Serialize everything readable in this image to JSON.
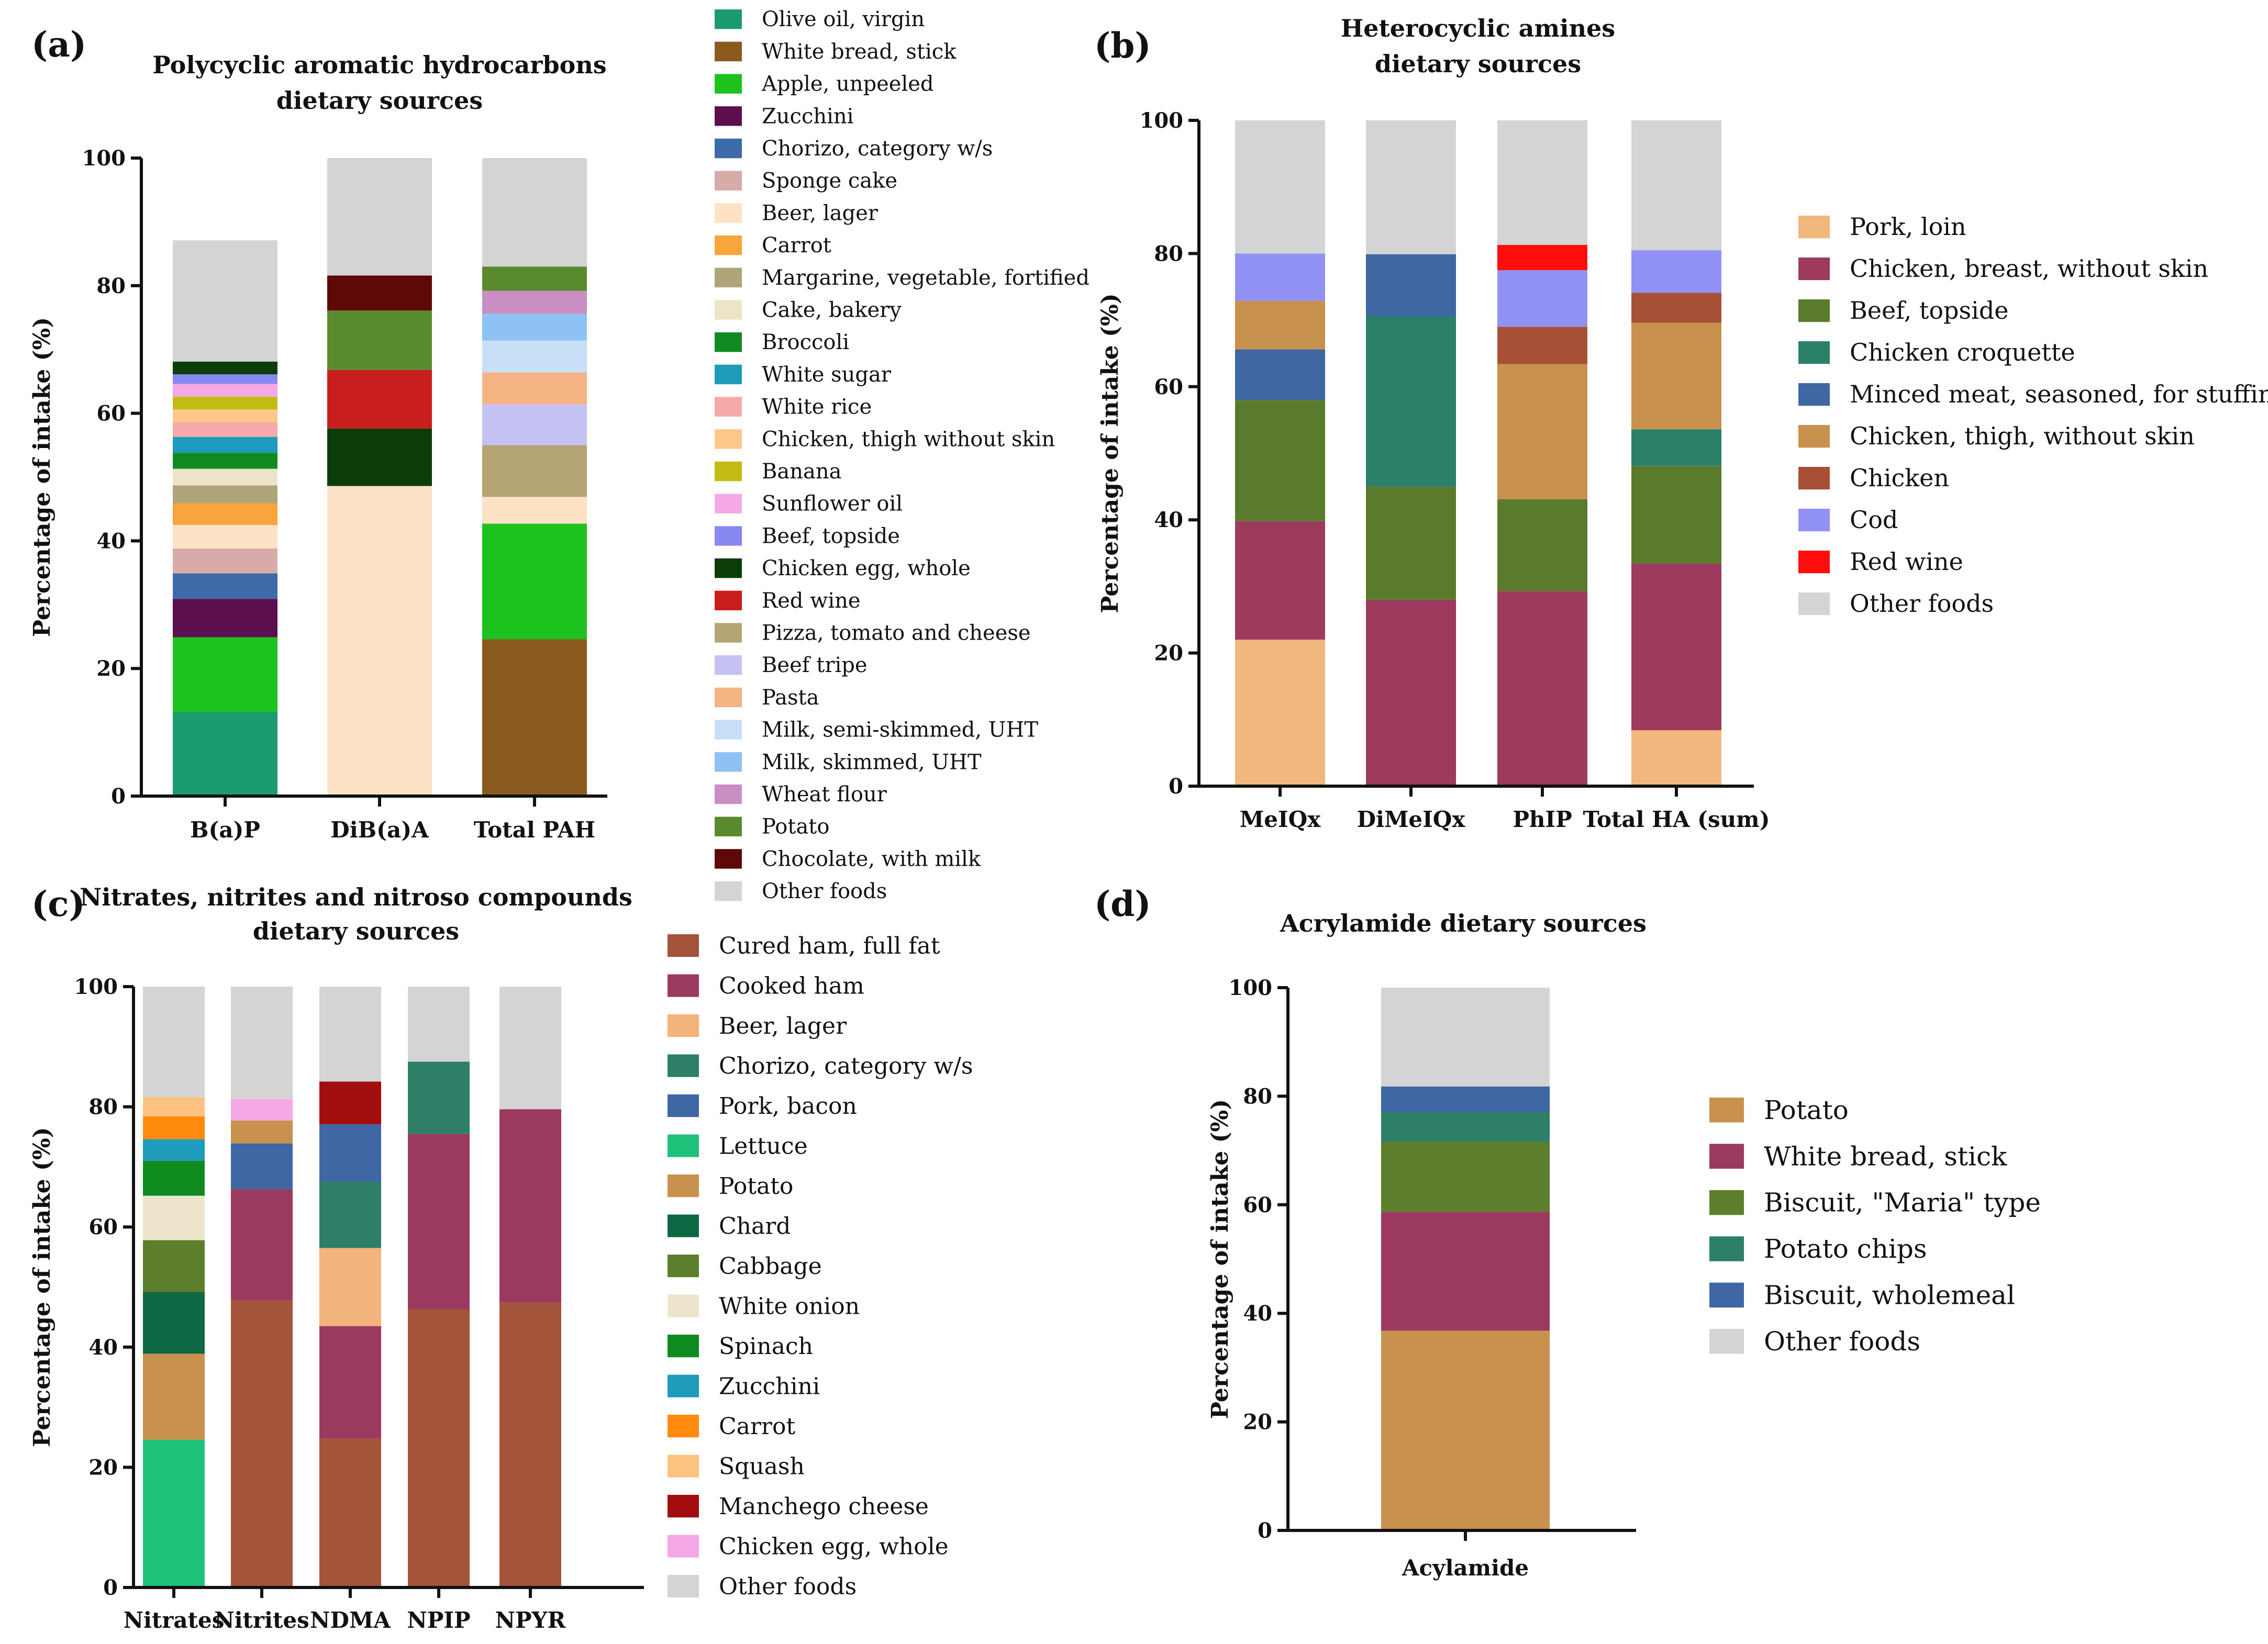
{
  "chart_data": [
    {
      "id": "a",
      "panel_label": "(a)",
      "type": "bar",
      "stacked": true,
      "title_lines": [
        "Polycyclic aromatic hydrocarbons",
        "dietary sources"
      ],
      "xlabel": "",
      "ylabel": "Percentage of intake (%)",
      "ylim": [
        0,
        100
      ],
      "yticks": [
        "0",
        "20",
        "40",
        "60",
        "80",
        "100"
      ],
      "categories": [
        "B(a)P",
        "DiB(a)A",
        "Total PAH"
      ],
      "legend_position": "right",
      "series": [
        {
          "name": "Olive oil, virgin",
          "color": "#1c9a70",
          "values": [
            13.2,
            0,
            0
          ]
        },
        {
          "name": "White bread, stick",
          "color": "#8b5a1e",
          "values": [
            0,
            0,
            24.6
          ]
        },
        {
          "name": "Apple, unpeeled",
          "color": "#1ec21e",
          "values": [
            11.7,
            0,
            18.1
          ]
        },
        {
          "name": "Zucchini",
          "color": "#5c0f4e",
          "values": [
            6.0,
            0,
            0
          ]
        },
        {
          "name": "Chorizo, category w/s",
          "color": "#3d6aa8",
          "values": [
            4.0,
            0,
            0
          ]
        },
        {
          "name": "Sponge cake",
          "color": "#d8aaa8",
          "values": [
            3.9,
            0,
            0
          ]
        },
        {
          "name": "Beer, lager",
          "color": "#fde2c6",
          "values": [
            3.7,
            48.6,
            4.2
          ]
        },
        {
          "name": "Carrot",
          "color": "#f7a53c",
          "values": [
            3.4,
            0,
            0
          ]
        },
        {
          "name": "Margarine, vegetable, fortified",
          "color": "#b0a479",
          "values": [
            2.8,
            0,
            0
          ]
        },
        {
          "name": "Cake, bakery",
          "color": "#ece4c6",
          "values": [
            2.6,
            0,
            0
          ]
        },
        {
          "name": "Broccoli",
          "color": "#118a22",
          "values": [
            2.5,
            0,
            0
          ]
        },
        {
          "name": "White sugar",
          "color": "#1e9bbb",
          "values": [
            2.5,
            0,
            0
          ]
        },
        {
          "name": "White rice",
          "color": "#f7a8a8",
          "values": [
            2.3,
            0,
            0
          ]
        },
        {
          "name": "Chicken, thigh without skin",
          "color": "#fbc88a",
          "values": [
            2.0,
            0,
            0
          ]
        },
        {
          "name": "Banana",
          "color": "#c2bc12",
          "values": [
            2.0,
            0,
            0
          ]
        },
        {
          "name": "Sunflower oil",
          "color": "#f5a8e6",
          "values": [
            2.0,
            0,
            0
          ]
        },
        {
          "name": "Beef, topside",
          "color": "#8888f0",
          "values": [
            1.5,
            0,
            0
          ]
        },
        {
          "name": "Chicken egg, whole",
          "color": "#0b3d0b",
          "values": [
            2.0,
            9.0,
            0
          ]
        },
        {
          "name": "Red wine",
          "color": "#c81e1e",
          "values": [
            0,
            9.2,
            0
          ]
        },
        {
          "name": "Pizza, tomato and cheese",
          "color": "#b5a474",
          "values": [
            0,
            0,
            8.1
          ]
        },
        {
          "name": "Beef tripe",
          "color": "#c5c3f3",
          "values": [
            0,
            0,
            6.4
          ]
        },
        {
          "name": "Pasta",
          "color": "#f5b283",
          "values": [
            0,
            0,
            5.0
          ]
        },
        {
          "name": "Milk, semi-skimmed, UHT",
          "color": "#c7e0f7",
          "values": [
            0,
            0,
            5.0
          ]
        },
        {
          "name": "Milk, skimmed, UHT",
          "color": "#8ec2f5",
          "values": [
            0,
            0,
            4.2
          ]
        },
        {
          "name": "Wheat flour",
          "color": "#c98ec4",
          "values": [
            0,
            0,
            3.6
          ]
        },
        {
          "name": "Potato",
          "color": "#5a8a2e",
          "values": [
            0,
            9.3,
            3.8
          ]
        },
        {
          "name": "Chocolate, with milk",
          "color": "#5e0808",
          "values": [
            0,
            5.5,
            0
          ]
        },
        {
          "name": "Other foods",
          "color": "#d4d4d4",
          "values": [
            19.0,
            18.4,
            17.0
          ]
        }
      ]
    },
    {
      "id": "b",
      "panel_label": "(b)",
      "type": "bar",
      "stacked": true,
      "title_lines": [
        "Heterocyclic amines",
        "dietary sources"
      ],
      "xlabel": "",
      "ylabel": "Percentage of intake (%)",
      "ylim": [
        0,
        100
      ],
      "yticks": [
        "0",
        "20",
        "40",
        "60",
        "80",
        "100"
      ],
      "categories": [
        "MeIQx",
        "DiMeIQx",
        "PhIP",
        "Total HA (sum)"
      ],
      "legend_position": "right",
      "series": [
        {
          "name": "Pork, loin",
          "color": "#f2b77c",
          "values": [
            22.0,
            0,
            0,
            8.4
          ]
        },
        {
          "name": "Chicken, breast, without skin",
          "color": "#9d3a5e",
          "values": [
            17.8,
            28.0,
            29.3,
            25.0
          ]
        },
        {
          "name": "Beef, topside",
          "color": "#5a7a2c",
          "values": [
            18.2,
            17.0,
            13.8,
            14.7
          ]
        },
        {
          "name": "Chicken croquette",
          "color": "#2a8068",
          "values": [
            0,
            25.6,
            0,
            5.5
          ]
        },
        {
          "name": "Minced meat, seasoned, for stuffing",
          "color": "#3e67a3",
          "values": [
            7.6,
            9.3,
            0,
            0
          ]
        },
        {
          "name": "Chicken, thigh, without skin",
          "color": "#c8914d",
          "values": [
            7.3,
            0,
            20.3,
            16.0
          ]
        },
        {
          "name": "Chicken",
          "color": "#a85036",
          "values": [
            0,
            0,
            5.6,
            4.5
          ]
        },
        {
          "name": "Cod",
          "color": "#9191f5",
          "values": [
            7.1,
            0,
            8.5,
            6.4
          ]
        },
        {
          "name": "Red wine",
          "color": "#ff0d0d",
          "values": [
            0,
            0,
            3.8,
            0
          ]
        },
        {
          "name": "Other foods",
          "color": "#d4d4d4",
          "values": [
            20.0,
            20.1,
            18.7,
            19.5
          ]
        }
      ]
    },
    {
      "id": "c",
      "panel_label": "(c)",
      "type": "bar",
      "stacked": true,
      "title_lines": [
        "Nitrates, nitrites and nitroso compounds",
        "dietary sources"
      ],
      "xlabel": "",
      "ylabel": "Percentage of intake (%)",
      "ylim": [
        0,
        100
      ],
      "yticks": [
        "0",
        "20",
        "40",
        "60",
        "80",
        "100"
      ],
      "categories": [
        "Nitrates",
        "Nitrites",
        "NDMA",
        "NPIP",
        "NPYR"
      ],
      "legend_position": "right",
      "series": [
        {
          "name": "Cured ham, full fat",
          "color": "#a3543a",
          "values": [
            0,
            47.8,
            24.8,
            46.3,
            47.4
          ]
        },
        {
          "name": "Cooked ham",
          "color": "#9b3a5e",
          "values": [
            0,
            18.5,
            18.7,
            29.2,
            32.2
          ]
        },
        {
          "name": "Beer, lager",
          "color": "#f2b37c",
          "values": [
            0,
            0,
            13.0,
            0,
            0
          ]
        },
        {
          "name": "Chorizo, category w/s",
          "color": "#2d7f68",
          "values": [
            0,
            0,
            11.0,
            12.0,
            0
          ]
        },
        {
          "name": "Pork, bacon",
          "color": "#3e67a3",
          "values": [
            0,
            7.6,
            9.6,
            0,
            0
          ]
        },
        {
          "name": "Lettuce",
          "color": "#1ec17a",
          "values": [
            24.6,
            0,
            0,
            0,
            0
          ]
        },
        {
          "name": "Potato",
          "color": "#c8914d",
          "values": [
            14.3,
            3.8,
            0,
            0,
            0
          ]
        },
        {
          "name": "Chard",
          "color": "#0e6843",
          "values": [
            10.3,
            0,
            0,
            0,
            0
          ]
        },
        {
          "name": "Cabbage",
          "color": "#5d7e2c",
          "values": [
            8.6,
            0,
            0,
            0,
            0
          ]
        },
        {
          "name": "White onion",
          "color": "#ece5cc",
          "values": [
            7.4,
            0,
            0,
            0,
            0
          ]
        },
        {
          "name": "Spinach",
          "color": "#0f8a1e",
          "values": [
            5.8,
            0,
            0,
            0,
            0
          ]
        },
        {
          "name": "Zucchini",
          "color": "#1f9bbb",
          "values": [
            3.6,
            0,
            0,
            0,
            0
          ]
        },
        {
          "name": "Carrot",
          "color": "#ff8a0d",
          "values": [
            3.8,
            0,
            0,
            0,
            0
          ]
        },
        {
          "name": "Squash",
          "color": "#fcc27f",
          "values": [
            3.2,
            0,
            0,
            0,
            0
          ]
        },
        {
          "name": "Manchego cheese",
          "color": "#a30d0d",
          "values": [
            0,
            0,
            7.1,
            0,
            0
          ]
        },
        {
          "name": "Chicken egg, whole",
          "color": "#f5a8e6",
          "values": [
            0,
            3.6,
            0,
            0,
            0
          ]
        },
        {
          "name": "Other foods",
          "color": "#d4d4d4",
          "values": [
            18.4,
            18.7,
            15.8,
            12.5,
            20.4
          ]
        }
      ]
    },
    {
      "id": "d",
      "panel_label": "(d)",
      "type": "bar",
      "stacked": true,
      "title_lines": [
        "Acrylamide dietary sources"
      ],
      "xlabel": "",
      "ylabel": "Percentage of intake (%)",
      "ylim": [
        0,
        100
      ],
      "yticks": [
        "0",
        "20",
        "40",
        "60",
        "80",
        "100"
      ],
      "categories": [
        "Acylamide"
      ],
      "legend_position": "right",
      "series": [
        {
          "name": "Potato",
          "color": "#c8914d",
          "values": [
            36.8
          ]
        },
        {
          "name": "White bread, stick",
          "color": "#9b3a5e",
          "values": [
            21.9
          ]
        },
        {
          "name": "Biscuit, \"Maria\" type",
          "color": "#5d7e2c",
          "values": [
            12.9
          ]
        },
        {
          "name": "Potato chips",
          "color": "#2d7f68",
          "values": [
            5.5
          ]
        },
        {
          "name": "Biscuit, wholemeal",
          "color": "#3e67a3",
          "values": [
            4.7
          ]
        },
        {
          "name": "Other foods",
          "color": "#d4d4d4",
          "values": [
            18.2
          ]
        }
      ]
    }
  ]
}
